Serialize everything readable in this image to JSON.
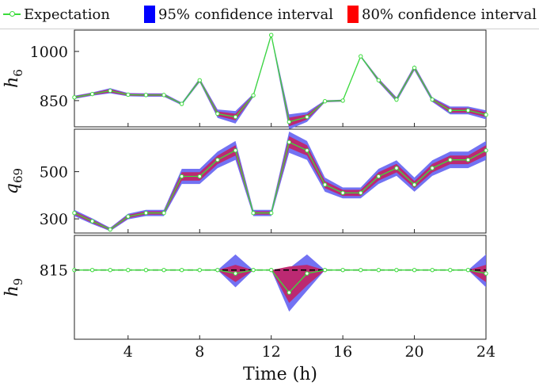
{
  "legend": {
    "expectation": "Expectation",
    "ci95": "95% confidence interval",
    "ci80": "80% confidence interval"
  },
  "colors": {
    "expectation": "#3cdc3c",
    "ci95": "#0000ff",
    "ci80": "#ff0000",
    "band95_fill": "#6a6af2",
    "band80_fill": "#c0256a",
    "reference_line": "#000000"
  },
  "chart_data": [
    {
      "type": "line",
      "panel": "h6",
      "ylabel_base": "h",
      "ylabel_sub": "6",
      "x": [
        1,
        2,
        3,
        4,
        5,
        6,
        7,
        8,
        9,
        10,
        11,
        12,
        13,
        14,
        15,
        16,
        17,
        18,
        19,
        20,
        21,
        22,
        23,
        24
      ],
      "ylim": [
        770,
        1065
      ],
      "yticks": [
        850,
        1000
      ],
      "expectation": [
        860,
        870,
        880,
        868,
        867,
        867,
        840,
        912,
        810,
        800,
        866,
        1050,
        785,
        800,
        848,
        850,
        985,
        912,
        853,
        950,
        853,
        820,
        820,
        807
      ],
      "ci80_low": [
        857,
        867,
        875,
        865,
        864,
        864,
        838,
        908,
        803,
        790,
        863,
        1047,
        772,
        792,
        846,
        848,
        983,
        908,
        849,
        945,
        849,
        813,
        813,
        800
      ],
      "ci80_high": [
        863,
        873,
        885,
        871,
        870,
        870,
        842,
        916,
        817,
        810,
        869,
        1053,
        798,
        808,
        850,
        852,
        987,
        916,
        857,
        955,
        857,
        827,
        827,
        814
      ],
      "ci95_low": [
        855,
        865,
        872,
        863,
        862,
        862,
        836,
        906,
        797,
        780,
        861,
        1045,
        762,
        785,
        845,
        847,
        982,
        906,
        846,
        942,
        846,
        808,
        808,
        793
      ],
      "ci95_high": [
        865,
        875,
        888,
        873,
        872,
        872,
        844,
        918,
        823,
        818,
        871,
        1055,
        808,
        815,
        851,
        853,
        988,
        918,
        860,
        958,
        860,
        832,
        832,
        820
      ]
    },
    {
      "type": "line",
      "panel": "q69",
      "ylabel_base": "q",
      "ylabel_sub": "69",
      "x": [
        1,
        2,
        3,
        4,
        5,
        6,
        7,
        8,
        9,
        10,
        11,
        12,
        13,
        14,
        15,
        16,
        17,
        18,
        19,
        20,
        21,
        22,
        23,
        24
      ],
      "ylim": [
        240,
        680
      ],
      "yticks": [
        300,
        500
      ],
      "expectation": [
        325,
        290,
        255,
        310,
        325,
        325,
        480,
        480,
        550,
        590,
        325,
        325,
        625,
        590,
        445,
        410,
        410,
        480,
        515,
        445,
        515,
        550,
        550,
        590
      ],
      "ci80_low": [
        318,
        283,
        251,
        303,
        318,
        318,
        462,
        462,
        532,
        568,
        318,
        318,
        600,
        568,
        430,
        397,
        397,
        462,
        497,
        430,
        497,
        532,
        532,
        568
      ],
      "ci80_high": [
        332,
        297,
        259,
        317,
        332,
        332,
        498,
        498,
        568,
        612,
        332,
        332,
        650,
        612,
        460,
        423,
        423,
        498,
        533,
        460,
        533,
        568,
        568,
        612
      ],
      "ci95_low": [
        312,
        278,
        248,
        298,
        312,
        312,
        448,
        448,
        515,
        550,
        312,
        312,
        580,
        550,
        415,
        387,
        387,
        448,
        482,
        415,
        482,
        515,
        515,
        550
      ],
      "ci95_high": [
        338,
        302,
        262,
        322,
        338,
        338,
        512,
        512,
        585,
        630,
        338,
        338,
        670,
        630,
        475,
        433,
        433,
        512,
        548,
        475,
        548,
        585,
        585,
        630
      ]
    },
    {
      "type": "line",
      "panel": "h9",
      "ylabel_base": "h",
      "ylabel_sub": "9",
      "x": [
        1,
        2,
        3,
        4,
        5,
        6,
        7,
        8,
        9,
        10,
        11,
        12,
        13,
        14,
        15,
        16,
        17,
        18,
        19,
        20,
        21,
        22,
        23,
        24
      ],
      "ylim": [
        775,
        835
      ],
      "yticks": [
        815
      ],
      "reference_value": 815,
      "expectation": [
        815,
        815,
        815,
        815,
        815,
        815,
        815,
        815,
        815,
        813,
        815,
        815,
        802,
        813,
        815,
        815,
        815,
        815,
        815,
        815,
        815,
        815,
        815,
        813
      ],
      "ci80_low": [
        815,
        815,
        815,
        815,
        815,
        815,
        815,
        815,
        815,
        808,
        815,
        815,
        796,
        806,
        815,
        815,
        815,
        815,
        815,
        815,
        815,
        815,
        815,
        808
      ],
      "ci80_high": [
        815,
        815,
        815,
        815,
        815,
        815,
        815,
        815,
        815,
        818,
        815,
        815,
        817,
        818,
        815,
        815,
        815,
        815,
        815,
        815,
        815,
        815,
        815,
        818
      ],
      "ci95_low": [
        815,
        815,
        815,
        815,
        815,
        815,
        815,
        815,
        815,
        805,
        815,
        815,
        791,
        803,
        815,
        815,
        815,
        815,
        815,
        815,
        815,
        815,
        815,
        805
      ],
      "ci95_high": [
        815,
        815,
        815,
        815,
        815,
        815,
        815,
        815,
        815,
        824,
        815,
        815,
        816,
        824,
        815,
        815,
        815,
        815,
        815,
        815,
        815,
        815,
        815,
        824
      ]
    }
  ],
  "x_axis": {
    "label": "Time (h)",
    "xlim": [
      1,
      24
    ],
    "ticks": [
      4,
      8,
      12,
      16,
      20,
      24
    ]
  }
}
